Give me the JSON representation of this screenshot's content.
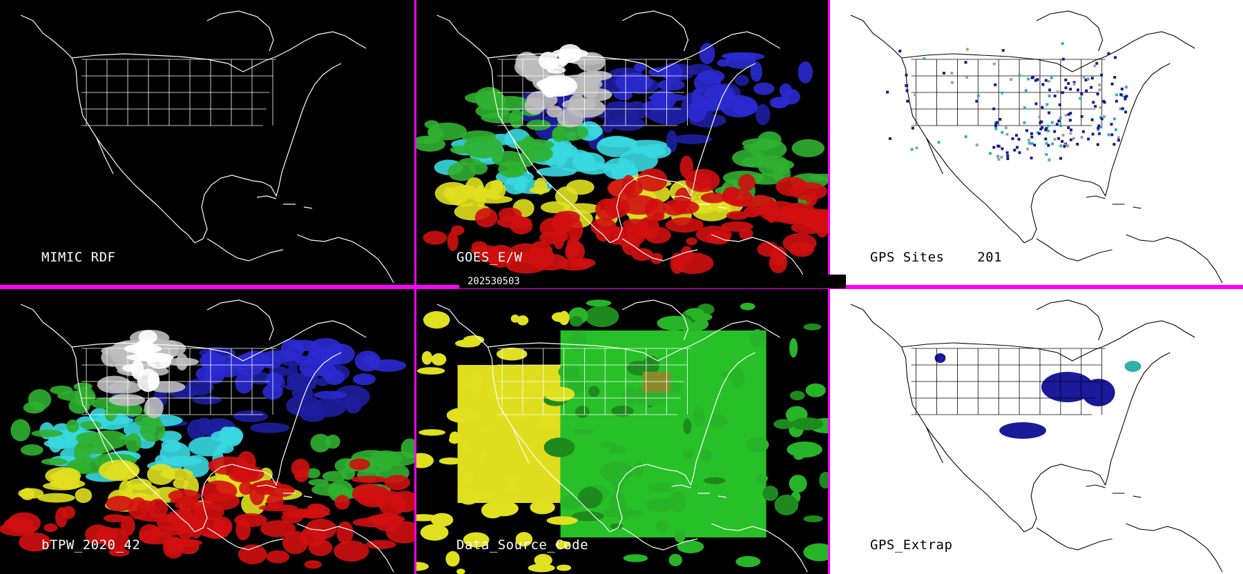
{
  "colors": {
    "separator": "#ff00ff",
    "dark_background": "#000000",
    "light_background": "#ffffff",
    "map_lines_dark": "#ffffff",
    "map_lines_light": "#000000"
  },
  "date_label": "202530503",
  "panels": [
    {
      "id": "mimic_rdf",
      "label": "MIMIC RDF",
      "theme": "dark",
      "layer": "none"
    },
    {
      "id": "goes_ew",
      "label": "GOES_E/W",
      "theme": "dark",
      "layer": "tpw"
    },
    {
      "id": "gps_sites",
      "label": "GPS Sites",
      "count": "201",
      "theme": "light",
      "layer": "sites"
    },
    {
      "id": "btpw",
      "label": "bTPW_2020_42",
      "theme": "dark",
      "layer": "tpw"
    },
    {
      "id": "data_source_code",
      "label": "Data_Source_Code",
      "theme": "dark",
      "layer": "source"
    },
    {
      "id": "gps_extrap",
      "label": "GPS_Extrap",
      "theme": "light",
      "layer": "extrap"
    }
  ]
}
